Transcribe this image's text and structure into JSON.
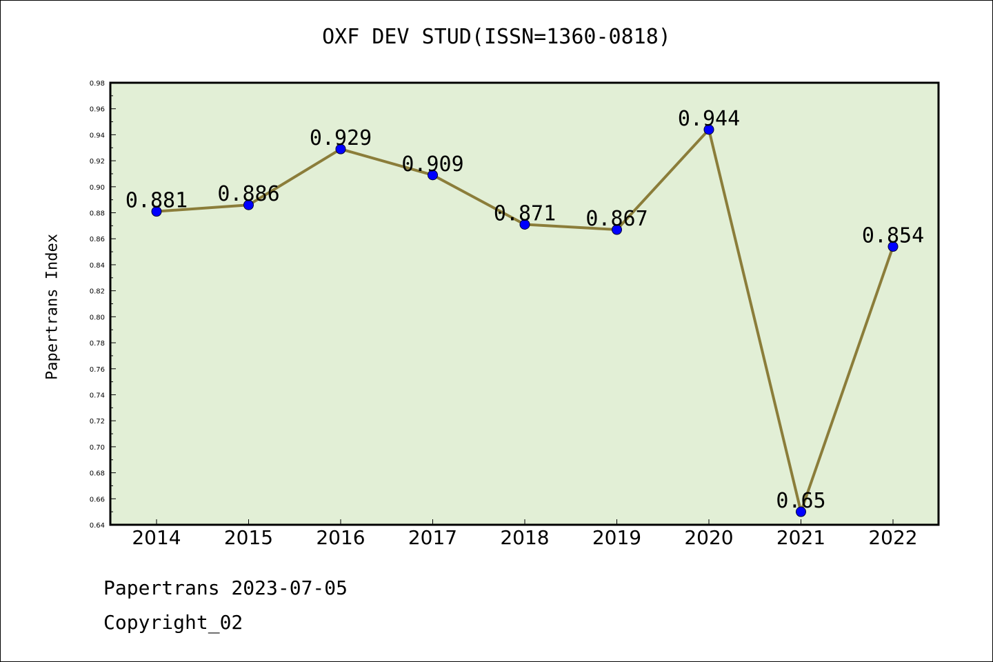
{
  "chart_data": {
    "type": "line",
    "title": "OXF DEV STUD(ISSN=1360-0818)",
    "ylabel": "Papertrans Index",
    "xlabel": "",
    "x": [
      "2014",
      "2015",
      "2016",
      "2017",
      "2018",
      "2019",
      "2020",
      "2021",
      "2022"
    ],
    "series": [
      {
        "values": [
          0.881,
          0.886,
          0.929,
          0.909,
          0.871,
          0.867,
          0.944,
          0.65,
          0.854
        ],
        "labels": [
          "0.881",
          "0.886",
          "0.929",
          "0.909",
          "0.871",
          "0.867",
          "0.944",
          "0.65",
          "0.854"
        ]
      }
    ],
    "ylim": [
      0.64,
      0.98
    ],
    "yticks": [
      "0.64",
      "0.66",
      "0.68",
      "0.70",
      "0.72",
      "0.74",
      "0.76",
      "0.78",
      "0.80",
      "0.82",
      "0.84",
      "0.86",
      "0.88",
      "0.90",
      "0.92",
      "0.94",
      "0.96",
      "0.98"
    ],
    "grid": false,
    "colors": {
      "plot_background": "#e2efd6",
      "line": "#8b7d3a",
      "marker": "#0000ff"
    }
  },
  "footer": {
    "line1": "Papertrans 2023-07-05",
    "line2": "Copyright_02"
  }
}
